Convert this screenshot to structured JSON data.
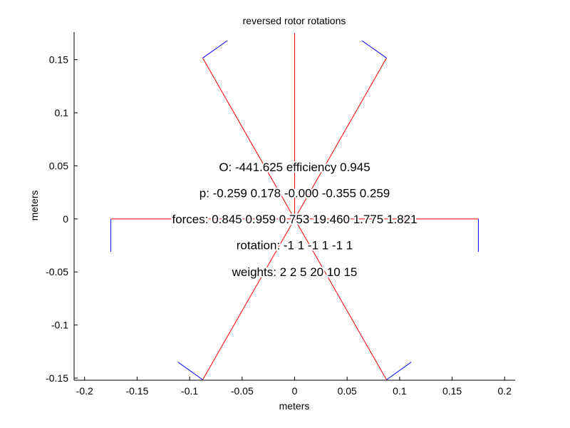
{
  "chart_data": {
    "type": "line",
    "title": "reversed rotor rotations",
    "xlabel": "meters",
    "ylabel": "meters",
    "xlim": [
      -0.21,
      0.21
    ],
    "ylim": [
      -0.152,
      0.176
    ],
    "grid": false,
    "x_ticks": [
      -0.2,
      -0.15,
      -0.1,
      -0.05,
      0,
      0.05,
      0.1,
      0.15,
      0.2
    ],
    "x_tick_labels": [
      "-0.2",
      "-0.15",
      "-0.1",
      "-0.05",
      "0",
      "0.05",
      "0.1",
      "0.15",
      "0.2"
    ],
    "y_ticks": [
      -0.15,
      -0.1,
      -0.05,
      0,
      0.05,
      0.1,
      0.15
    ],
    "y_tick_labels": [
      "-0.15",
      "-0.1",
      "-0.05",
      "0",
      "0.05",
      "0.1",
      "0.15"
    ],
    "colors": {
      "arm": "#ff0000",
      "rotor": "#0000ff",
      "axis": "#000000"
    },
    "series": [
      {
        "color": "#ff0000",
        "x": [
          0,
          0
        ],
        "y": [
          0,
          0.175
        ]
      },
      {
        "color": "#ff0000",
        "x": [
          0,
          0.175
        ],
        "y": [
          0,
          0
        ]
      },
      {
        "color": "#ff0000",
        "x": [
          0,
          -0.175
        ],
        "y": [
          0,
          0
        ]
      },
      {
        "color": "#ff0000",
        "x": [
          0,
          0.0875
        ],
        "y": [
          0,
          0.1516
        ]
      },
      {
        "color": "#ff0000",
        "x": [
          0,
          -0.0875
        ],
        "y": [
          0,
          0.1516
        ]
      },
      {
        "color": "#ff0000",
        "x": [
          0,
          0.0875
        ],
        "y": [
          0,
          -0.1516
        ]
      },
      {
        "color": "#ff0000",
        "x": [
          0,
          -0.0875
        ],
        "y": [
          0,
          -0.1516
        ]
      },
      {
        "color": "#0000ff",
        "x": [
          -0.0875,
          -0.064
        ],
        "y": [
          0.1516,
          0.168
        ]
      },
      {
        "color": "#0000ff",
        "x": [
          0.0875,
          0.064
        ],
        "y": [
          0.1516,
          0.168
        ]
      },
      {
        "color": "#0000ff",
        "x": [
          0.175,
          0.175
        ],
        "y": [
          0,
          -0.031
        ]
      },
      {
        "color": "#0000ff",
        "x": [
          -0.175,
          -0.175
        ],
        "y": [
          0,
          -0.031
        ]
      },
      {
        "color": "#0000ff",
        "x": [
          0.0875,
          0.111
        ],
        "y": [
          -0.1516,
          -0.135
        ]
      },
      {
        "color": "#0000ff",
        "x": [
          -0.0875,
          -0.111
        ],
        "y": [
          -0.1516,
          -0.135
        ]
      }
    ],
    "annotations": [
      {
        "text": "O: -441.625    efficiency 0.945",
        "x": 0,
        "y": 0.049
      },
      {
        "text": "p: -0.259 0.178 -0.000 -0.355 0.259",
        "x": 0,
        "y": 0.0245
      },
      {
        "text": "forces: 0.845 0.959 0.753 19.460 1.775 1.821",
        "x": 0,
        "y": 0
      },
      {
        "text": "rotation: -1 1 -1 1 -1 1",
        "x": 0,
        "y": -0.0245
      },
      {
        "text": "weights: 2 2 5 20 10 15",
        "x": 0,
        "y": -0.05
      }
    ]
  }
}
